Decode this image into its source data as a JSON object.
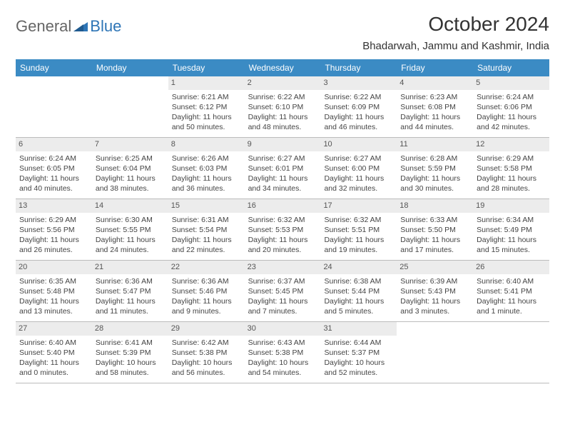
{
  "logo": {
    "part1": "General",
    "part2": "Blue"
  },
  "title": "October 2024",
  "location": "Bhadarwah, Jammu and Kashmir, India",
  "colors": {
    "header_bg": "#3b8bc4",
    "header_text": "#ffffff",
    "daynum_bg": "#ececec",
    "border": "#bcbcbc",
    "logo_blue": "#2e75b6"
  },
  "days_of_week": [
    "Sunday",
    "Monday",
    "Tuesday",
    "Wednesday",
    "Thursday",
    "Friday",
    "Saturday"
  ],
  "weeks": [
    [
      {
        "n": "",
        "sr": "",
        "ss": "",
        "dl": ""
      },
      {
        "n": "",
        "sr": "",
        "ss": "",
        "dl": ""
      },
      {
        "n": "1",
        "sr": "Sunrise: 6:21 AM",
        "ss": "Sunset: 6:12 PM",
        "dl": "Daylight: 11 hours and 50 minutes."
      },
      {
        "n": "2",
        "sr": "Sunrise: 6:22 AM",
        "ss": "Sunset: 6:10 PM",
        "dl": "Daylight: 11 hours and 48 minutes."
      },
      {
        "n": "3",
        "sr": "Sunrise: 6:22 AM",
        "ss": "Sunset: 6:09 PM",
        "dl": "Daylight: 11 hours and 46 minutes."
      },
      {
        "n": "4",
        "sr": "Sunrise: 6:23 AM",
        "ss": "Sunset: 6:08 PM",
        "dl": "Daylight: 11 hours and 44 minutes."
      },
      {
        "n": "5",
        "sr": "Sunrise: 6:24 AM",
        "ss": "Sunset: 6:06 PM",
        "dl": "Daylight: 11 hours and 42 minutes."
      }
    ],
    [
      {
        "n": "6",
        "sr": "Sunrise: 6:24 AM",
        "ss": "Sunset: 6:05 PM",
        "dl": "Daylight: 11 hours and 40 minutes."
      },
      {
        "n": "7",
        "sr": "Sunrise: 6:25 AM",
        "ss": "Sunset: 6:04 PM",
        "dl": "Daylight: 11 hours and 38 minutes."
      },
      {
        "n": "8",
        "sr": "Sunrise: 6:26 AM",
        "ss": "Sunset: 6:03 PM",
        "dl": "Daylight: 11 hours and 36 minutes."
      },
      {
        "n": "9",
        "sr": "Sunrise: 6:27 AM",
        "ss": "Sunset: 6:01 PM",
        "dl": "Daylight: 11 hours and 34 minutes."
      },
      {
        "n": "10",
        "sr": "Sunrise: 6:27 AM",
        "ss": "Sunset: 6:00 PM",
        "dl": "Daylight: 11 hours and 32 minutes."
      },
      {
        "n": "11",
        "sr": "Sunrise: 6:28 AM",
        "ss": "Sunset: 5:59 PM",
        "dl": "Daylight: 11 hours and 30 minutes."
      },
      {
        "n": "12",
        "sr": "Sunrise: 6:29 AM",
        "ss": "Sunset: 5:58 PM",
        "dl": "Daylight: 11 hours and 28 minutes."
      }
    ],
    [
      {
        "n": "13",
        "sr": "Sunrise: 6:29 AM",
        "ss": "Sunset: 5:56 PM",
        "dl": "Daylight: 11 hours and 26 minutes."
      },
      {
        "n": "14",
        "sr": "Sunrise: 6:30 AM",
        "ss": "Sunset: 5:55 PM",
        "dl": "Daylight: 11 hours and 24 minutes."
      },
      {
        "n": "15",
        "sr": "Sunrise: 6:31 AM",
        "ss": "Sunset: 5:54 PM",
        "dl": "Daylight: 11 hours and 22 minutes."
      },
      {
        "n": "16",
        "sr": "Sunrise: 6:32 AM",
        "ss": "Sunset: 5:53 PM",
        "dl": "Daylight: 11 hours and 20 minutes."
      },
      {
        "n": "17",
        "sr": "Sunrise: 6:32 AM",
        "ss": "Sunset: 5:51 PM",
        "dl": "Daylight: 11 hours and 19 minutes."
      },
      {
        "n": "18",
        "sr": "Sunrise: 6:33 AM",
        "ss": "Sunset: 5:50 PM",
        "dl": "Daylight: 11 hours and 17 minutes."
      },
      {
        "n": "19",
        "sr": "Sunrise: 6:34 AM",
        "ss": "Sunset: 5:49 PM",
        "dl": "Daylight: 11 hours and 15 minutes."
      }
    ],
    [
      {
        "n": "20",
        "sr": "Sunrise: 6:35 AM",
        "ss": "Sunset: 5:48 PM",
        "dl": "Daylight: 11 hours and 13 minutes."
      },
      {
        "n": "21",
        "sr": "Sunrise: 6:36 AM",
        "ss": "Sunset: 5:47 PM",
        "dl": "Daylight: 11 hours and 11 minutes."
      },
      {
        "n": "22",
        "sr": "Sunrise: 6:36 AM",
        "ss": "Sunset: 5:46 PM",
        "dl": "Daylight: 11 hours and 9 minutes."
      },
      {
        "n": "23",
        "sr": "Sunrise: 6:37 AM",
        "ss": "Sunset: 5:45 PM",
        "dl": "Daylight: 11 hours and 7 minutes."
      },
      {
        "n": "24",
        "sr": "Sunrise: 6:38 AM",
        "ss": "Sunset: 5:44 PM",
        "dl": "Daylight: 11 hours and 5 minutes."
      },
      {
        "n": "25",
        "sr": "Sunrise: 6:39 AM",
        "ss": "Sunset: 5:43 PM",
        "dl": "Daylight: 11 hours and 3 minutes."
      },
      {
        "n": "26",
        "sr": "Sunrise: 6:40 AM",
        "ss": "Sunset: 5:41 PM",
        "dl": "Daylight: 11 hours and 1 minute."
      }
    ],
    [
      {
        "n": "27",
        "sr": "Sunrise: 6:40 AM",
        "ss": "Sunset: 5:40 PM",
        "dl": "Daylight: 11 hours and 0 minutes."
      },
      {
        "n": "28",
        "sr": "Sunrise: 6:41 AM",
        "ss": "Sunset: 5:39 PM",
        "dl": "Daylight: 10 hours and 58 minutes."
      },
      {
        "n": "29",
        "sr": "Sunrise: 6:42 AM",
        "ss": "Sunset: 5:38 PM",
        "dl": "Daylight: 10 hours and 56 minutes."
      },
      {
        "n": "30",
        "sr": "Sunrise: 6:43 AM",
        "ss": "Sunset: 5:38 PM",
        "dl": "Daylight: 10 hours and 54 minutes."
      },
      {
        "n": "31",
        "sr": "Sunrise: 6:44 AM",
        "ss": "Sunset: 5:37 PM",
        "dl": "Daylight: 10 hours and 52 minutes."
      },
      {
        "n": "",
        "sr": "",
        "ss": "",
        "dl": ""
      },
      {
        "n": "",
        "sr": "",
        "ss": "",
        "dl": ""
      }
    ]
  ]
}
